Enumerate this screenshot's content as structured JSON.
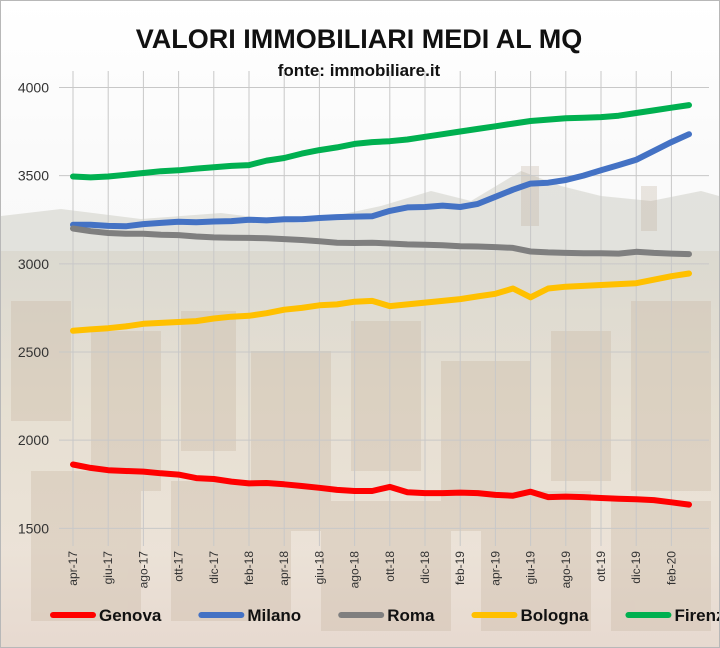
{
  "chart_data": {
    "type": "line",
    "title": "VALORI IMMOBILIARI MEDI AL MQ",
    "subtitle": "fonte: immobiliare.it",
    "xlabel": "",
    "ylabel": "",
    "ylim": [
      1400,
      4150
    ],
    "yticks": [
      1500,
      2000,
      2500,
      3000,
      3500,
      4000
    ],
    "grid": true,
    "legend_position": "bottom",
    "x": [
      "apr-17",
      "mag-17",
      "giu-17",
      "lug-17",
      "ago-17",
      "set-17",
      "ott-17",
      "nov-17",
      "dic-17",
      "gen-18",
      "feb-18",
      "mar-18",
      "apr-18",
      "mag-18",
      "giu-18",
      "lug-18",
      "ago-18",
      "set-18",
      "ott-18",
      "nov-18",
      "dic-18",
      "gen-19",
      "feb-19",
      "mar-19",
      "apr-19",
      "mag-19",
      "giu-19",
      "lug-19",
      "ago-19",
      "set-19",
      "ott-19",
      "nov-19",
      "dic-19",
      "gen-20",
      "feb-20",
      "mar-20"
    ],
    "x_tick_labels": [
      "apr-17",
      "giu-17",
      "ago-17",
      "ott-17",
      "dic-17",
      "feb-18",
      "apr-18",
      "giu-18",
      "ago-18",
      "ott-18",
      "dic-18",
      "feb-19",
      "apr-19",
      "giu-19",
      "ago-19",
      "ott-19",
      "dic-19",
      "feb-20"
    ],
    "series": [
      {
        "name": "Genova",
        "color": "#ff0000",
        "values": [
          1862,
          1843,
          1830,
          1825,
          1822,
          1812,
          1805,
          1785,
          1780,
          1765,
          1755,
          1757,
          1750,
          1740,
          1730,
          1718,
          1712,
          1712,
          1735,
          1705,
          1700,
          1700,
          1703,
          1700,
          1690,
          1685,
          1708,
          1677,
          1680,
          1677,
          1672,
          1668,
          1665,
          1660,
          1648,
          1635
        ]
      },
      {
        "name": "Milano",
        "color": "#4472c4",
        "values": [
          3222,
          3222,
          3215,
          3213,
          3225,
          3232,
          3238,
          3236,
          3240,
          3242,
          3250,
          3246,
          3253,
          3253,
          3260,
          3265,
          3268,
          3270,
          3300,
          3320,
          3322,
          3330,
          3322,
          3340,
          3380,
          3420,
          3455,
          3460,
          3475,
          3500,
          3530,
          3560,
          3590,
          3640,
          3690,
          3735
        ]
      },
      {
        "name": "Roma",
        "color": "#7f7f7f",
        "values": [
          3200,
          3185,
          3175,
          3170,
          3170,
          3165,
          3163,
          3155,
          3150,
          3148,
          3147,
          3145,
          3140,
          3135,
          3128,
          3120,
          3118,
          3120,
          3115,
          3110,
          3108,
          3105,
          3100,
          3098,
          3095,
          3090,
          3070,
          3065,
          3062,
          3060,
          3060,
          3058,
          3068,
          3062,
          3058,
          3055
        ]
      },
      {
        "name": "Bologna",
        "color": "#ffc000",
        "values": [
          2620,
          2628,
          2635,
          2645,
          2660,
          2665,
          2670,
          2675,
          2690,
          2700,
          2705,
          2720,
          2740,
          2750,
          2765,
          2770,
          2785,
          2790,
          2760,
          2770,
          2780,
          2790,
          2800,
          2815,
          2830,
          2860,
          2810,
          2860,
          2870,
          2875,
          2880,
          2885,
          2890,
          2910,
          2930,
          2945
        ]
      },
      {
        "name": "Firenze",
        "color": "#00b050",
        "values": [
          3495,
          3490,
          3495,
          3505,
          3515,
          3525,
          3530,
          3540,
          3548,
          3555,
          3560,
          3585,
          3600,
          3625,
          3645,
          3660,
          3680,
          3690,
          3695,
          3705,
          3720,
          3735,
          3750,
          3765,
          3780,
          3795,
          3810,
          3818,
          3825,
          3828,
          3832,
          3840,
          3855,
          3870,
          3885,
          3900
        ]
      }
    ]
  }
}
